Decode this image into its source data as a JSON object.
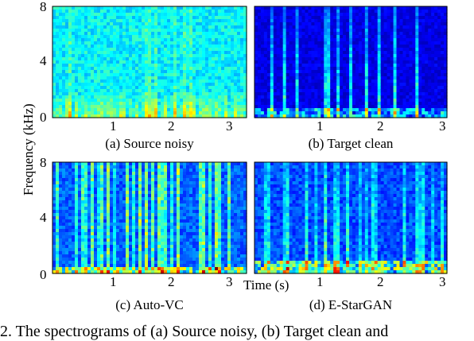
{
  "figure": {
    "y_axis_label": "Frequency (kHz)",
    "x_axis_label": "Time (s)",
    "caption_partial": "2. The spectrograms of (a) Source noisy, (b) Target clean and"
  },
  "colors": {
    "low": "#00008f",
    "mid": "#00bfff",
    "high": "#ffff00",
    "peak": "#b00000"
  },
  "chart_data": [
    {
      "type": "heatmap",
      "title": "(a) Source noisy",
      "xlabel": "",
      "ylabel": "Frequency (kHz)",
      "xlim": [
        0,
        3.25
      ],
      "ylim": [
        0,
        8
      ],
      "x_ticks": [
        "1",
        "2",
        "3"
      ],
      "y_ticks": [
        "0",
        "4",
        "8"
      ]
    },
    {
      "type": "heatmap",
      "title": "(b) Target clean",
      "xlabel": "",
      "ylabel": "",
      "xlim": [
        0,
        3.25
      ],
      "ylim": [
        0,
        8
      ],
      "x_ticks": [
        "1",
        "2",
        "3"
      ],
      "y_ticks": []
    },
    {
      "type": "heatmap",
      "title": "(c) Auto-VC",
      "xlabel": "",
      "ylabel": "Frequency (kHz)",
      "xlim": [
        0,
        3.25
      ],
      "ylim": [
        0,
        8
      ],
      "x_ticks": [
        "1",
        "2",
        "3"
      ],
      "y_ticks": [
        "0",
        "4",
        "8"
      ]
    },
    {
      "type": "heatmap",
      "title": "(d) E-StarGAN",
      "xlabel": "Time (s)",
      "ylabel": "",
      "xlim": [
        0,
        3.25
      ],
      "ylim": [
        0,
        8
      ],
      "x_ticks": [
        "1",
        "2",
        "3"
      ],
      "y_ticks": []
    }
  ]
}
